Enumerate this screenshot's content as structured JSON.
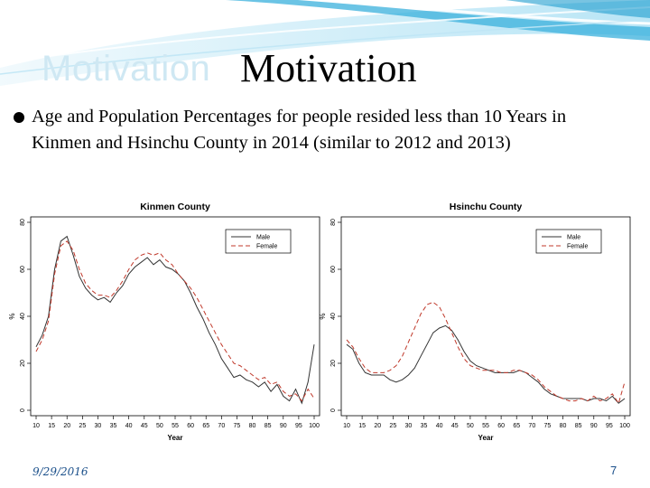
{
  "slide": {
    "title": "Motivation",
    "title_shadow": "Motivation",
    "bullet": "Age and Population Percentages for people resided less than 10 Years in Kinmen and Hsinchu County in 2014 (similar to 2012 and 2013)",
    "footer_date": "9/29/2016",
    "page_number": "7"
  },
  "colors": {
    "male": "#333333",
    "female": "#c0392b",
    "footer": "#1a4f8a",
    "banner": "#3ab0dc"
  },
  "chart_data": [
    {
      "type": "line",
      "title": "Kinmen County",
      "xlabel": "Year",
      "ylabel": "%",
      "xlim": [
        10,
        100
      ],
      "ylim": [
        0,
        80
      ],
      "xticks": [
        10,
        15,
        20,
        25,
        30,
        35,
        40,
        45,
        50,
        55,
        60,
        65,
        70,
        75,
        80,
        85,
        90,
        95,
        100
      ],
      "yticks": [
        0,
        20,
        40,
        60,
        80
      ],
      "legend_position": "top-right",
      "x": [
        10,
        12,
        14,
        16,
        18,
        20,
        22,
        24,
        26,
        28,
        30,
        32,
        34,
        36,
        38,
        40,
        42,
        44,
        46,
        48,
        50,
        52,
        54,
        56,
        58,
        60,
        62,
        64,
        66,
        68,
        70,
        72,
        74,
        76,
        78,
        80,
        82,
        84,
        86,
        88,
        90,
        92,
        94,
        96,
        98,
        100
      ],
      "series": [
        {
          "name": "Male",
          "values": [
            27,
            32,
            40,
            60,
            72,
            74,
            66,
            57,
            52,
            49,
            47,
            48,
            46,
            50,
            53,
            58,
            61,
            63,
            65,
            62,
            64,
            61,
            60,
            58,
            55,
            50,
            44,
            39,
            33,
            28,
            22,
            18,
            14,
            15,
            13,
            12,
            10,
            12,
            8,
            11,
            6,
            4,
            9,
            3,
            12,
            28
          ]
        },
        {
          "name": "Female",
          "values": [
            25,
            30,
            38,
            58,
            70,
            72,
            68,
            60,
            54,
            51,
            49,
            49,
            48,
            51,
            55,
            60,
            64,
            66,
            67,
            66,
            67,
            64,
            62,
            58,
            55,
            52,
            48,
            43,
            38,
            33,
            28,
            24,
            20,
            19,
            17,
            15,
            13,
            14,
            11,
            12,
            8,
            6,
            7,
            4,
            9,
            5
          ]
        }
      ]
    },
    {
      "type": "line",
      "title": "Hsinchu County",
      "xlabel": "Year",
      "ylabel": "%",
      "xlim": [
        10,
        100
      ],
      "ylim": [
        0,
        80
      ],
      "xticks": [
        10,
        15,
        20,
        25,
        30,
        35,
        40,
        45,
        50,
        55,
        60,
        65,
        70,
        75,
        80,
        85,
        90,
        95,
        100
      ],
      "yticks": [
        0,
        20,
        40,
        60,
        80
      ],
      "legend_position": "top-right",
      "x": [
        10,
        12,
        14,
        16,
        18,
        20,
        22,
        24,
        26,
        28,
        30,
        32,
        34,
        36,
        38,
        40,
        42,
        44,
        46,
        48,
        50,
        52,
        54,
        56,
        58,
        60,
        62,
        64,
        66,
        68,
        70,
        72,
        74,
        76,
        78,
        80,
        82,
        84,
        86,
        88,
        90,
        92,
        94,
        96,
        98,
        100
      ],
      "series": [
        {
          "name": "Male",
          "values": [
            28,
            26,
            20,
            16,
            15,
            15,
            15,
            13,
            12,
            13,
            15,
            18,
            23,
            28,
            33,
            35,
            36,
            34,
            30,
            25,
            21,
            19,
            18,
            17,
            16,
            16,
            16,
            16,
            17,
            16,
            14,
            12,
            9,
            7,
            6,
            5,
            5,
            5,
            5,
            4,
            5,
            5,
            4,
            6,
            3,
            5
          ]
        },
        {
          "name": "Female",
          "values": [
            30,
            27,
            22,
            18,
            16,
            16,
            16,
            17,
            19,
            23,
            29,
            35,
            41,
            45,
            46,
            44,
            39,
            33,
            27,
            22,
            19,
            18,
            17,
            17,
            17,
            16,
            16,
            17,
            17,
            16,
            15,
            13,
            10,
            8,
            6,
            5,
            4,
            4,
            5,
            4,
            6,
            4,
            5,
            7,
            3,
            12
          ]
        }
      ]
    }
  ]
}
